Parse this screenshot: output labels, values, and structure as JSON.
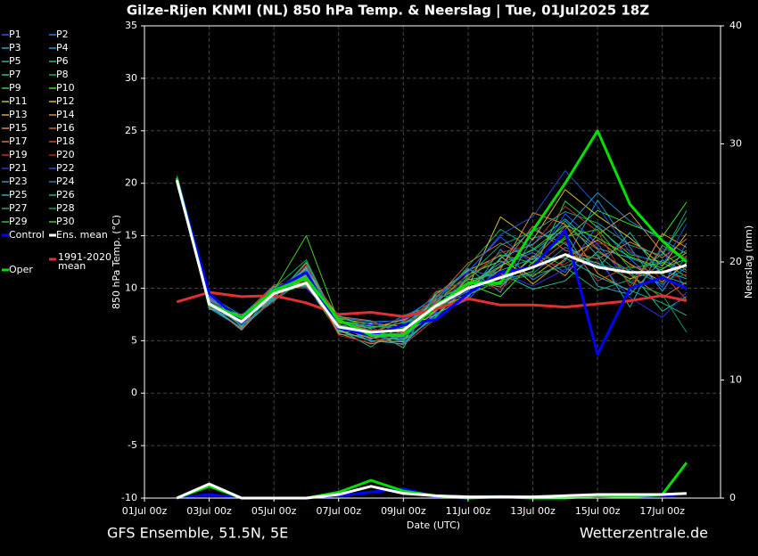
{
  "chart_data": {
    "type": "line",
    "title": "Gilze-Rijen KNMI  (NL)  850 hPa Temp. & Neerslag | Tue, 01Jul2025 18Z",
    "xlabel": "Date (UTC)",
    "ylabel": "850 hPa Temp. (°C)",
    "y2label": "Neerslag (mm)",
    "footer_left": "GFS Ensemble, 51.5N, 5E",
    "footer_right": "Wetterzentrale.de",
    "x": [
      1,
      2,
      3,
      4,
      5,
      6,
      7,
      8,
      9,
      10,
      11,
      12,
      13,
      14,
      15,
      16,
      16.75
    ],
    "xlim": [
      0,
      17.8
    ],
    "xticks": [
      {
        "value": 0,
        "label": "01Jul 00z"
      },
      {
        "value": 2,
        "label": "03Jul 00z"
      },
      {
        "value": 4,
        "label": "05Jul 00z"
      },
      {
        "value": 6,
        "label": "07Jul 00z"
      },
      {
        "value": 8,
        "label": "09Jul 00z"
      },
      {
        "value": 10,
        "label": "11Jul 00z"
      },
      {
        "value": 12,
        "label": "13Jul 00z"
      },
      {
        "value": 14,
        "label": "15Jul 00z"
      },
      {
        "value": 16,
        "label": "17Jul 00z"
      }
    ],
    "ylim": [
      -10,
      35
    ],
    "yticks": [
      -10,
      -5,
      0,
      5,
      10,
      15,
      20,
      25,
      30,
      35
    ],
    "y2lim": [
      0,
      40
    ],
    "y2ticks": [
      0,
      10,
      20,
      30,
      40
    ],
    "grid": true,
    "series": [
      {
        "name": "P1",
        "color": "#3050ff",
        "values": [
          20.4,
          8.9,
          6.5,
          9.8,
          11.8,
          6.8,
          5.1,
          7.2,
          9.1,
          11.6,
          14.9,
          12.3,
          17.1,
          14.2,
          10.5,
          13.6,
          9.8
        ]
      },
      {
        "name": "P2",
        "color": "#2070ff",
        "values": [
          20.1,
          9.2,
          7.1,
          9.3,
          10.9,
          5.9,
          6.3,
          4.8,
          7.6,
          8.9,
          12.2,
          13.4,
          11.5,
          16.0,
          12.8,
          10.1,
          14.3
        ]
      },
      {
        "name": "P3",
        "color": "#30a0d0",
        "values": [
          20.6,
          8.1,
          6.2,
          8.9,
          11.3,
          6.6,
          4.9,
          5.5,
          8.8,
          11.9,
          9.6,
          14.8,
          15.3,
          10.2,
          9.4,
          12.7,
          11.5
        ]
      },
      {
        "name": "P4",
        "color": "#2090e0",
        "values": [
          20.2,
          8.7,
          7.4,
          10.2,
          10.1,
          7.2,
          6.8,
          6.9,
          9.3,
          9.1,
          13.7,
          10.8,
          12.6,
          18.4,
          13.9,
          9.7,
          13.1
        ]
      },
      {
        "name": "P5",
        "color": "#20b0b0",
        "values": [
          20.7,
          9.4,
          6.9,
          9.1,
          12.1,
          5.6,
          5.4,
          5.1,
          7.2,
          10.6,
          10.3,
          12.9,
          16.4,
          13.1,
          8.2,
          14.1,
          12.6
        ]
      },
      {
        "name": "P6",
        "color": "#10c0a0",
        "values": [
          20.3,
          8.3,
          6.1,
          9.7,
          10.6,
          6.1,
          4.4,
          6.6,
          8.1,
          9.7,
          12.8,
          15.6,
          14.2,
          11.9,
          15.3,
          11.2,
          10.4
        ]
      },
      {
        "name": "P7",
        "color": "#20c090",
        "values": [
          19.9,
          8.6,
          7.3,
          8.8,
          11.0,
          7.4,
          6.1,
          4.3,
          9.6,
          10.8,
          11.4,
          9.9,
          10.7,
          13.5,
          11.6,
          7.8,
          9.2
        ]
      },
      {
        "name": "P8",
        "color": "#10b060",
        "values": [
          20.5,
          9.0,
          6.6,
          10.0,
          12.7,
          6.4,
          5.6,
          7.4,
          8.4,
          12.1,
          15.6,
          13.8,
          12.0,
          9.8,
          10.8,
          13.3,
          16.7
        ]
      },
      {
        "name": "P9",
        "color": "#30d040",
        "values": [
          20.4,
          8.2,
          7.0,
          9.4,
          10.3,
          5.8,
          5.9,
          5.2,
          7.9,
          9.4,
          10.7,
          11.6,
          18.3,
          15.8,
          13.2,
          12.5,
          11.1
        ]
      },
      {
        "name": "P10",
        "color": "#40e020",
        "values": [
          20.0,
          9.1,
          6.4,
          9.9,
          11.5,
          6.9,
          6.4,
          6.2,
          8.9,
          10.4,
          9.2,
          12.5,
          14.7,
          17.4,
          16.1,
          14.9,
          18.2
        ]
      },
      {
        "name": "P11",
        "color": "#b0c020",
        "values": [
          20.3,
          8.8,
          7.2,
          9.6,
          10.8,
          6.3,
          5.2,
          5.8,
          8.6,
          11.3,
          12.6,
          11.1,
          13.3,
          12.4,
          10.9,
          11.8,
          13.4
        ]
      },
      {
        "name": "P12",
        "color": "#d0c030",
        "values": [
          20.6,
          8.4,
          6.8,
          9.2,
          11.9,
          7.1,
          6.6,
          6.4,
          7.4,
          10.1,
          16.8,
          14.6,
          19.4,
          16.9,
          14.8,
          12.1,
          15.2
        ]
      },
      {
        "name": "P13",
        "color": "#d0b020",
        "values": [
          20.2,
          9.3,
          6.3,
          10.1,
          10.4,
          6.0,
          5.0,
          4.9,
          9.4,
          11.7,
          13.1,
          10.4,
          12.8,
          14.6,
          12.3,
          10.6,
          12.4
        ]
      },
      {
        "name": "P14",
        "color": "#e09020",
        "values": [
          20.5,
          8.0,
          7.5,
          9.0,
          12.4,
          6.7,
          6.2,
          7.0,
          8.2,
          9.3,
          11.8,
          17.2,
          16.1,
          11.4,
          9.7,
          15.2,
          13.9
        ]
      },
      {
        "name": "P15",
        "color": "#d09060",
        "values": [
          20.1,
          8.9,
          6.7,
          9.5,
          11.2,
          5.7,
          4.7,
          5.4,
          7.8,
          10.9,
          10.1,
          13.1,
          11.2,
          15.1,
          17.2,
          13.4,
          11.7
        ]
      },
      {
        "name": "P16",
        "color": "#c07030",
        "values": [
          20.4,
          9.5,
          7.0,
          9.8,
          10.2,
          6.5,
          5.8,
          6.8,
          9.0,
          12.4,
          14.3,
          12.7,
          15.9,
          13.7,
          11.3,
          9.1,
          10.6
        ]
      },
      {
        "name": "P17",
        "color": "#d07050",
        "values": [
          20.3,
          8.5,
          6.0,
          9.3,
          11.6,
          7.3,
          6.9,
          5.6,
          8.5,
          10.2,
          12.0,
          15.9,
          13.6,
          12.8,
          14.4,
          12.9,
          14.7
        ]
      },
      {
        "name": "P18",
        "color": "#c05030",
        "values": [
          20.6,
          8.2,
          7.3,
          10.3,
          10.7,
          6.2,
          5.3,
          4.6,
          7.1,
          9.6,
          11.2,
          11.9,
          14.4,
          10.7,
          12.1,
          11.4,
          8.9
        ]
      },
      {
        "name": "P19",
        "color": "#c03030",
        "values": [
          20.0,
          9.0,
          6.6,
          8.7,
          12.2,
          6.8,
          6.0,
          6.1,
          8.7,
          11.0,
          13.4,
          14.1,
          17.8,
          15.4,
          10.2,
          13.8,
          12.9
        ]
      },
      {
        "name": "P20",
        "color": "#b02020",
        "values": [
          20.2,
          8.6,
          7.1,
          9.6,
          11.1,
          5.5,
          4.8,
          5.9,
          9.7,
          10.7,
          9.9,
          12.2,
          12.3,
          14.3,
          13.6,
          10.8,
          11.3
        ]
      },
      {
        "name": "P21",
        "color": "#3030e0",
        "values": [
          20.5,
          9.2,
          6.5,
          10.0,
          10.0,
          6.6,
          6.5,
          7.1,
          8.0,
          9.8,
          11.5,
          10.2,
          11.8,
          12.6,
          9.1,
          7.2,
          9.6
        ]
      },
      {
        "name": "P22",
        "color": "#2050d0",
        "values": [
          20.3,
          8.8,
          6.9,
          9.4,
          11.4,
          7.0,
          5.7,
          5.3,
          7.7,
          11.5,
          15.1,
          16.8,
          21.2,
          17.8,
          13.4,
          12.2,
          16.1
        ]
      },
      {
        "name": "P23",
        "color": "#3090c0",
        "values": [
          20.1,
          8.4,
          6.2,
          9.1,
          12.0,
          6.1,
          5.4,
          6.5,
          8.9,
          10.3,
          12.4,
          13.6,
          15.6,
          19.1,
          16.4,
          14.6,
          13.3
        ]
      },
      {
        "name": "P24",
        "color": "#2080b0",
        "values": [
          20.7,
          9.3,
          7.4,
          9.9,
          10.5,
          6.4,
          6.7,
          6.0,
          9.2,
          11.8,
          10.9,
          11.4,
          13.9,
          12.2,
          11.8,
          10.4,
          12.0
        ]
      },
      {
        "name": "P25",
        "color": "#20b0c0",
        "values": [
          20.4,
          8.1,
          6.8,
          9.2,
          11.7,
          5.9,
          5.0,
          4.7,
          7.5,
          9.2,
          12.9,
          14.2,
          16.6,
          13.8,
          12.9,
          11.7,
          10.9
        ]
      },
      {
        "name": "P26",
        "color": "#20b090",
        "values": [
          20.2,
          9.0,
          7.2,
          10.1,
          10.9,
          6.9,
          6.2,
          6.7,
          8.3,
          10.5,
          11.7,
          12.8,
          12.9,
          11.1,
          9.8,
          8.6,
          7.4
        ]
      },
      {
        "name": "P27",
        "color": "#20a080",
        "values": [
          20.5,
          8.7,
          6.4,
          9.0,
          12.5,
          6.3,
          5.5,
          5.0,
          7.3,
          11.2,
          14.1,
          15.4,
          17.3,
          16.2,
          14.1,
          13.1,
          17.4
        ]
      },
      {
        "name": "P28",
        "color": "#10a050",
        "values": [
          20.3,
          9.4,
          6.9,
          9.7,
          10.6,
          7.2,
          6.3,
          6.3,
          8.6,
          9.9,
          10.6,
          11.3,
          12.1,
          13.2,
          10.6,
          9.4,
          5.8
        ]
      },
      {
        "name": "P29",
        "color": "#30c030",
        "values": [
          20.6,
          8.3,
          7.0,
          9.5,
          11.3,
          6.5,
          5.6,
          5.7,
          8.1,
          10.9,
          13.2,
          12.4,
          14.9,
          15.6,
          11.9,
          12.4,
          13.6
        ]
      },
      {
        "name": "P30",
        "color": "#40d020",
        "values": [
          20.1,
          8.6,
          6.7,
          9.8,
          15.0,
          6.8,
          5.9,
          6.0,
          7.9,
          10.4,
          12.1,
          13.7,
          16.0,
          14.8,
          13.0,
          11.9,
          12.8
        ]
      },
      {
        "name": "Control",
        "color": "#0000ff",
        "line_width": 3,
        "values": [
          20.5,
          9.5,
          6.8,
          9.8,
          11.5,
          6.2,
          5.5,
          6.5,
          7.0,
          9.5,
          11.5,
          12.0,
          15.5,
          3.7,
          10.0,
          11.0,
          10.0
        ],
        "precip": [
          0,
          0.3,
          0,
          0,
          0,
          0.2,
          0.5,
          0.8,
          0.1,
          0,
          0.2,
          0,
          0.1,
          0.3,
          0.1,
          0.2,
          0.4
        ]
      },
      {
        "name": "Ens. mean",
        "color": "#ffffff",
        "line_width": 3,
        "values": [
          20.3,
          8.5,
          6.8,
          9.5,
          10.5,
          6.3,
          5.8,
          6.0,
          8.3,
          10.0,
          11.0,
          12.0,
          13.2,
          12.0,
          11.5,
          11.5,
          12.2
        ],
        "precip": [
          0,
          1.2,
          0,
          0,
          0,
          0.3,
          1.0,
          0.4,
          0.2,
          0.1,
          0.1,
          0.1,
          0.2,
          0.3,
          0.3,
          0.3,
          0.4
        ]
      },
      {
        "name": "1991-2020 mean",
        "color": "#e03030",
        "line_width": 3,
        "values": [
          8.7,
          9.6,
          9.2,
          9.3,
          8.6,
          7.5,
          7.7,
          7.3,
          8.0,
          9.0,
          8.4,
          8.4,
          8.2,
          8.5,
          8.8,
          9.3,
          8.8
        ]
      },
      {
        "name": "Oper",
        "color": "#00e000",
        "line_width": 3,
        "values": [
          20.5,
          8.5,
          7.2,
          9.8,
          11.0,
          7.0,
          5.5,
          5.5,
          8.3,
          10.5,
          10.5,
          15.5,
          20.0,
          25.0,
          18.0,
          14.5,
          12.5
        ],
        "precip": [
          0,
          1.0,
          0,
          0,
          0,
          0.5,
          1.5,
          0.6,
          0.2,
          0,
          0.1,
          0,
          0,
          0.2,
          0.1,
          0.3,
          3.0
        ]
      }
    ]
  }
}
